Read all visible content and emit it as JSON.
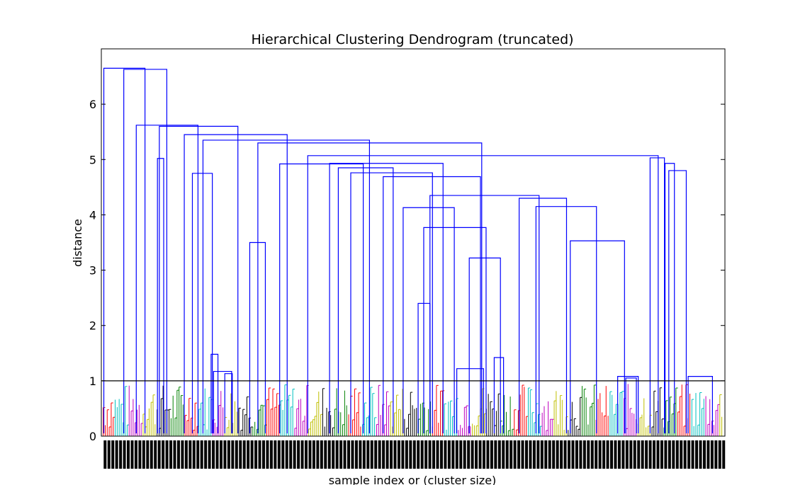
{
  "chart_data": {
    "type": "dendrogram",
    "title": "Hierarchical Clustering Dendrogram (truncated)",
    "xlabel": "sample index or (cluster size)",
    "ylabel": "distance",
    "ylim": [
      0,
      7
    ],
    "yticks": [
      0,
      1,
      2,
      3,
      4,
      5,
      6
    ],
    "threshold_line": 1.0,
    "grid": false,
    "colors": {
      "above_threshold": "#0000ff",
      "threshold": "#000000",
      "clusters": [
        "#008000",
        "#ff0000",
        "#00bfbf",
        "#bf00bf",
        "#bfbf00",
        "#000000"
      ]
    },
    "merges": [
      {
        "left": 0.4,
        "right": 7.0,
        "height": 6.65
      },
      {
        "left": 3.6,
        "right": 10.5,
        "height": 6.63
      },
      {
        "left": 5.6,
        "right": 15.5,
        "height": 5.62
      },
      {
        "left": 9.3,
        "right": 21.9,
        "height": 5.6
      },
      {
        "left": 13.3,
        "right": 29.8,
        "height": 5.45
      },
      {
        "left": 16.3,
        "right": 43.0,
        "height": 5.35
      },
      {
        "left": 25.1,
        "right": 61.0,
        "height": 5.3
      },
      {
        "left": 33.1,
        "right": 89.3,
        "height": 5.07
      },
      {
        "left": 28.6,
        "right": 42.0,
        "height": 4.92
      },
      {
        "left": 36.6,
        "right": 54.8,
        "height": 4.93
      },
      {
        "left": 38.0,
        "right": 46.8,
        "height": 4.85
      },
      {
        "left": 40.0,
        "right": 53.1,
        "height": 4.76
      },
      {
        "left": 45.2,
        "right": 60.8,
        "height": 4.69
      },
      {
        "left": 52.7,
        "right": 70.2,
        "height": 4.35
      },
      {
        "left": 67.0,
        "right": 74.6,
        "height": 4.3
      },
      {
        "left": 69.7,
        "right": 79.4,
        "height": 4.15
      },
      {
        "left": 48.4,
        "right": 56.6,
        "height": 4.13
      },
      {
        "left": 51.7,
        "right": 61.7,
        "height": 3.77
      },
      {
        "left": 75.2,
        "right": 83.9,
        "height": 3.53
      },
      {
        "left": 23.8,
        "right": 26.3,
        "height": 3.5
      },
      {
        "left": 59.0,
        "right": 64.0,
        "height": 3.22
      },
      {
        "left": 50.8,
        "right": 52.7,
        "height": 2.4
      },
      {
        "left": 88.0,
        "right": 90.3,
        "height": 5.03
      },
      {
        "left": 90.4,
        "right": 91.9,
        "height": 4.93
      },
      {
        "left": 91.0,
        "right": 93.8,
        "height": 4.8
      },
      {
        "left": 14.6,
        "right": 17.8,
        "height": 4.75
      },
      {
        "left": 9.0,
        "right": 10.0,
        "height": 5.02
      },
      {
        "left": 17.6,
        "right": 18.7,
        "height": 1.48
      },
      {
        "left": 18.0,
        "right": 20.9,
        "height": 1.17
      },
      {
        "left": 19.8,
        "right": 21.0,
        "height": 1.13
      },
      {
        "left": 57.0,
        "right": 61.3,
        "height": 1.22
      },
      {
        "left": 63.0,
        "right": 64.5,
        "height": 1.42
      },
      {
        "left": 82.8,
        "right": 86.1,
        "height": 1.08
      },
      {
        "left": 84.1,
        "right": 85.8,
        "height": 1.05
      },
      {
        "left": 94.1,
        "right": 98.0,
        "height": 1.08
      }
    ]
  }
}
